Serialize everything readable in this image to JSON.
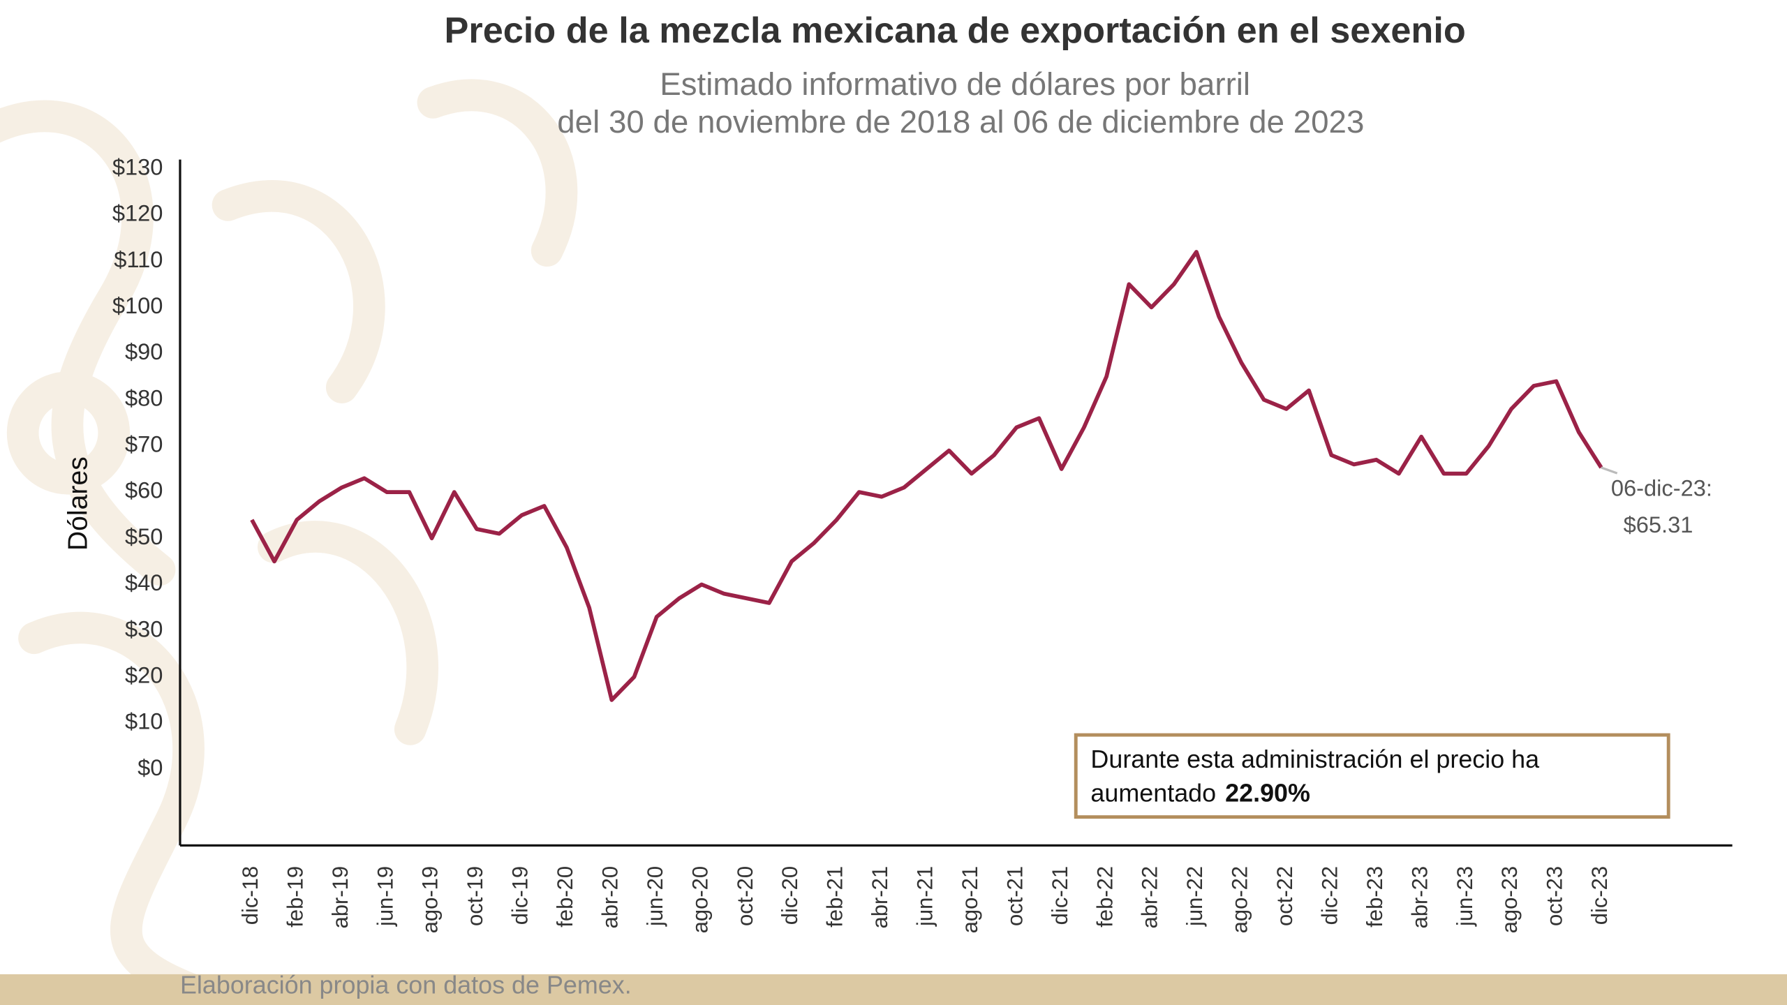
{
  "chart_data": {
    "type": "line",
    "title": "Precio de la mezcla mexicana de exportación en el sexenio",
    "subtitle": [
      "Estimado informativo de dólares por barril",
      "del 30 de noviembre de 2018 al 06 de diciembre de 2023"
    ],
    "y_label": "Dólares",
    "categories": [
      "dic-18",
      null,
      "feb-19",
      null,
      "abr-19",
      null,
      "jun-19",
      null,
      "ago-19",
      null,
      "oct-19",
      null,
      "dic-19",
      null,
      "feb-20",
      null,
      "abr-20",
      null,
      "jun-20",
      null,
      "ago-20",
      null,
      "oct-20",
      null,
      "dic-20",
      null,
      "feb-21",
      null,
      "abr-21",
      null,
      "jun-21",
      null,
      "ago-21",
      null,
      "oct-21",
      null,
      "dic-21",
      null,
      "feb-22",
      null,
      "abr-22",
      null,
      "jun-22",
      null,
      "ago-22",
      null,
      "oct-22",
      null,
      "dic-22",
      null,
      "feb-23",
      null,
      "abr-23",
      null,
      "jun-23",
      null,
      "ago-23",
      null,
      "oct-23",
      null,
      "dic-23"
    ],
    "series": [
      {
        "name": "Mezcla mexicana",
        "color": "#9b2247",
        "values": [
          54,
          45,
          54,
          58,
          61,
          63,
          60,
          60,
          50,
          60,
          52,
          51,
          55,
          57,
          48,
          35,
          15,
          20,
          33,
          37,
          40,
          38,
          37,
          36,
          45,
          49,
          54,
          60,
          59,
          61,
          65,
          69,
          64,
          68,
          74,
          76,
          65,
          74,
          85,
          105,
          100,
          105,
          112,
          98,
          88,
          80,
          78,
          82,
          68,
          66,
          67,
          64,
          72,
          64,
          64,
          70,
          78,
          83,
          84,
          73,
          65.31
        ]
      }
    ],
    "ylim": [
      -16.5,
      132
    ],
    "yticks": [
      {
        "value": 0,
        "label": "$0"
      },
      {
        "value": 10,
        "label": "$10"
      },
      {
        "value": 20,
        "label": "$20"
      },
      {
        "value": 30,
        "label": "$30"
      },
      {
        "value": 40,
        "label": "$40"
      },
      {
        "value": 50,
        "label": "$50"
      },
      {
        "value": 60,
        "label": "$60"
      },
      {
        "value": 70,
        "label": "$70"
      },
      {
        "value": 80,
        "label": "$80"
      },
      {
        "value": 90,
        "label": "$90"
      },
      {
        "value": 100,
        "label": "$100"
      },
      {
        "value": 110,
        "label": "$110"
      },
      {
        "value": 120,
        "label": "$120"
      },
      {
        "value": 130,
        "label": "$130"
      }
    ],
    "grid": false,
    "end_label": [
      "06-dic-23:",
      "$65.31"
    ],
    "annotation": {
      "lines": [
        "Durante esta administración el precio ha",
        "aumentado"
      ],
      "highlight": "22.90%"
    },
    "source": "Elaboración propia con datos de Pemex."
  }
}
